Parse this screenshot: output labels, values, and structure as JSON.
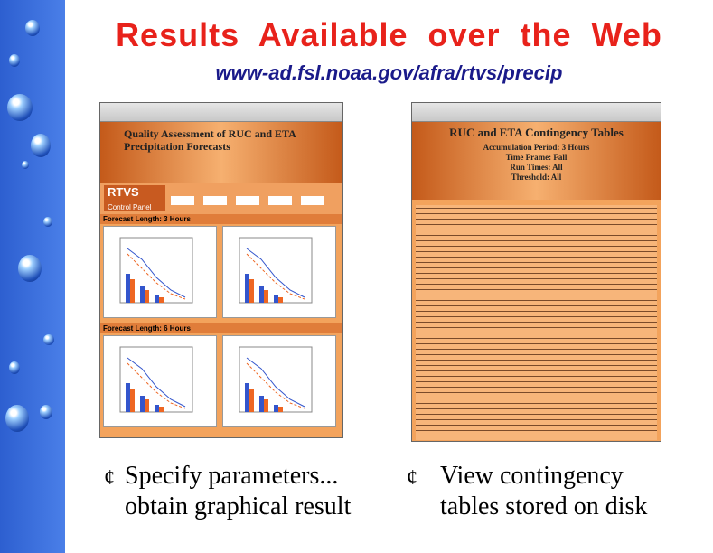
{
  "slide": {
    "title": "Results  Available  over  the  Web",
    "url": "www-ad.fsl.noaa.gov/afra/rtvs/precip",
    "left_screenshot": {
      "heading": "Quality Assessment of RUC and ETA Precipitation Forecasts",
      "logo": "RTVS",
      "logo_sub": "Control Panel",
      "section_1": "Forecast Length: 3 Hours",
      "section_2": "Forecast Length: 6 Hours"
    },
    "right_screenshot": {
      "heading": "RUC and ETA Contingency Tables",
      "lines": [
        "Accumulation Period: 3 Hours",
        "Time Frame: Fall",
        "Run Times: All",
        "Threshold: All"
      ]
    },
    "bullets": [
      {
        "symbol": "¢",
        "lines": [
          "Specify parameters...",
          "obtain graphical result"
        ]
      },
      {
        "symbol": "¢",
        "lines": [
          "View contingency",
          "tables stored on disk"
        ]
      }
    ]
  }
}
